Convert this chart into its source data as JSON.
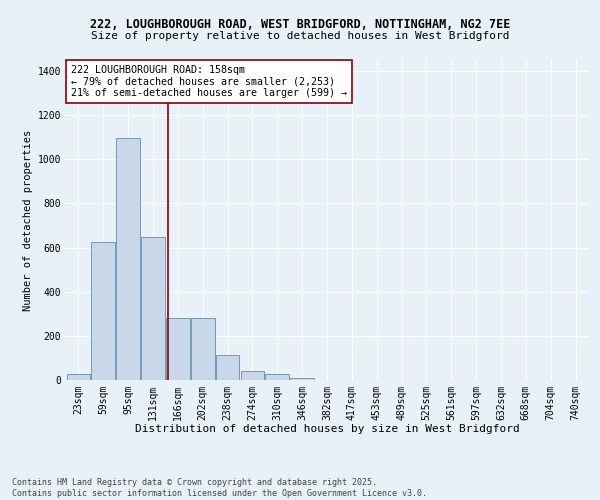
{
  "title_line1": "222, LOUGHBOROUGH ROAD, WEST BRIDGFORD, NOTTINGHAM, NG2 7EE",
  "title_line2": "Size of property relative to detached houses in West Bridgford",
  "xlabel": "Distribution of detached houses by size in West Bridgford",
  "ylabel": "Number of detached properties",
  "footnote": "Contains HM Land Registry data © Crown copyright and database right 2025.\nContains public sector information licensed under the Open Government Licence v3.0.",
  "bar_labels": [
    "23sqm",
    "59sqm",
    "95sqm",
    "131sqm",
    "166sqm",
    "202sqm",
    "238sqm",
    "274sqm",
    "310sqm",
    "346sqm",
    "382sqm",
    "417sqm",
    "453sqm",
    "489sqm",
    "525sqm",
    "561sqm",
    "597sqm",
    "632sqm",
    "668sqm",
    "704sqm",
    "740sqm"
  ],
  "bar_values": [
    25,
    625,
    1095,
    650,
    280,
    280,
    115,
    40,
    25,
    10,
    0,
    0,
    0,
    0,
    0,
    0,
    0,
    0,
    0,
    0,
    0
  ],
  "bar_color": "#c8d8e8",
  "bar_edge_color": "#6090b0",
  "bg_color": "#e8f0f8",
  "grid_color": "#ffffff",
  "vline_x": 3.62,
  "vline_color": "#8b0000",
  "annotation_text": "222 LOUGHBOROUGH ROAD: 158sqm\n← 79% of detached houses are smaller (2,253)\n21% of semi-detached houses are larger (599) →",
  "annotation_box_color": "#ffffff",
  "annotation_box_edge": "#8b0000",
  "ylim": [
    0,
    1450
  ],
  "yticks": [
    0,
    200,
    400,
    600,
    800,
    1000,
    1200,
    1400
  ],
  "title1_fontsize": 8.5,
  "title2_fontsize": 8.0,
  "xlabel_fontsize": 8.0,
  "ylabel_fontsize": 7.5,
  "tick_fontsize": 7.0,
  "annot_fontsize": 7.2,
  "footnote_fontsize": 6.0
}
